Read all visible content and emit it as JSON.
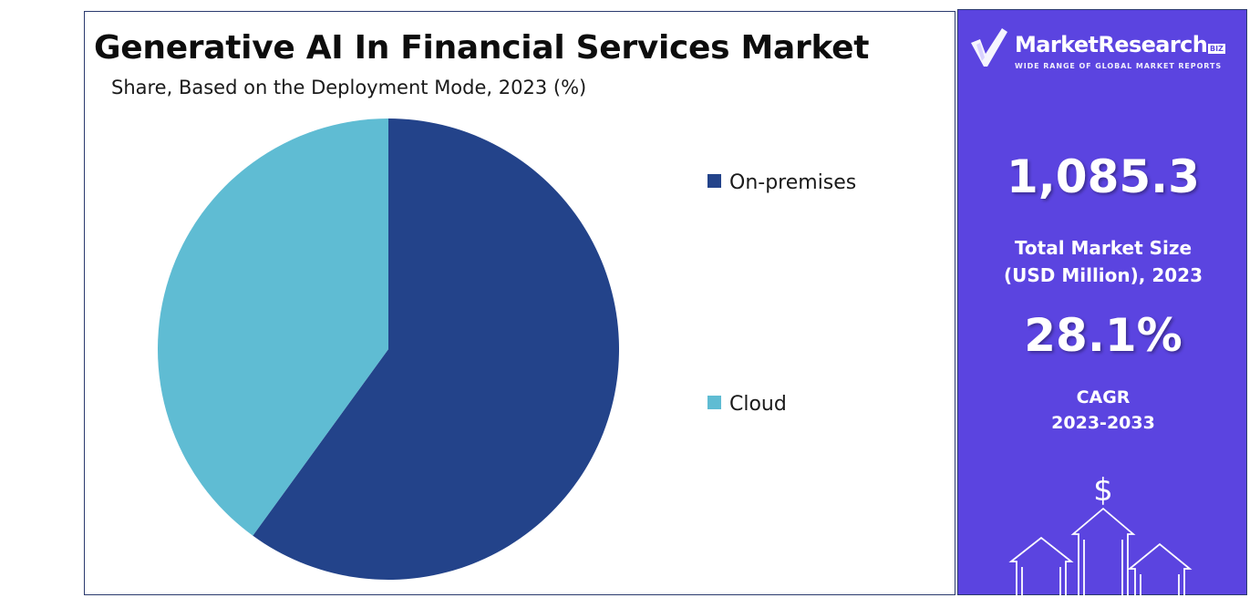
{
  "chart_data": {
    "type": "pie",
    "title": "Generative AI In Financial Services Market",
    "subtitle": "Share, Based on the Deployment Mode, 2023 (%)",
    "categories": [
      "On-premises",
      "Cloud"
    ],
    "values": [
      60,
      40
    ],
    "colors": [
      "#23438a",
      "#5fbcd3"
    ],
    "legend": "right",
    "start_angle_deg": 0,
    "direction": "clockwise"
  },
  "side_panel": {
    "brand": "MarketResearch",
    "brand_badge": "BIZ",
    "tagline": "WIDE RANGE OF GLOBAL MARKET REPORTS",
    "market_size_value": "1,085.3",
    "market_size_label_1": "Total Market Size",
    "market_size_label_2": "(USD Million), 2023",
    "cagr_value": "28.1%",
    "cagr_label_1": "CAGR",
    "cagr_label_2": "2023-2033",
    "currency_symbol": "$",
    "background_color": "#5b44e0"
  }
}
